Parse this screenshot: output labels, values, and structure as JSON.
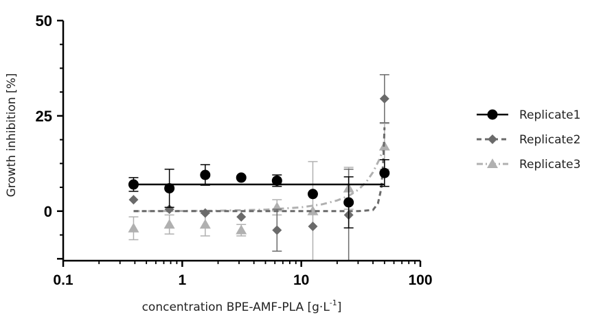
{
  "chart_data": {
    "type": "scatter",
    "xlabel": "concentration BPE-AMF-PLA [g·L",
    "xlabel_superscript": "-1",
    "xlabel_suffix": "]",
    "ylabel": "Growth inhibition [%]",
    "xscale": "log",
    "xlim": [
      0.1,
      100
    ],
    "ylim": [
      -13,
      50
    ],
    "x_ticks": [
      0.1,
      1,
      10,
      100
    ],
    "x_tick_labels": [
      "0.1",
      "1",
      "10",
      "100"
    ],
    "y_ticks": [
      0,
      25,
      50
    ],
    "y_tick_labels": [
      "0",
      "25",
      "50"
    ],
    "grid": false,
    "legend_position": "right",
    "series": [
      {
        "name": "Replicate1",
        "marker": "circle",
        "color": "#000000",
        "line_style": "solid",
        "x": [
          0.39,
          0.78,
          1.56,
          3.13,
          6.25,
          12.5,
          25,
          50
        ],
        "y": [
          7.0,
          6.0,
          9.5,
          8.8,
          8.0,
          4.5,
          2.3,
          10.0
        ],
        "err": [
          1.8,
          5.0,
          2.7,
          0,
          1.5,
          0,
          6.7,
          3.5
        ],
        "fit_x": [
          0.39,
          50
        ],
        "fit_y": [
          7.0,
          7.0
        ]
      },
      {
        "name": "Replicate2",
        "marker": "diamond",
        "color": "#6a6a6a",
        "line_style": "dash",
        "x": [
          0.39,
          0.78,
          1.56,
          3.13,
          6.25,
          12.5,
          25,
          50
        ],
        "y": [
          3.0,
          0.5,
          -0.5,
          -1.5,
          -5.0,
          -4.0,
          -1.0,
          29.5
        ],
        "err": [
          0,
          0,
          0,
          0,
          5.5,
          0,
          12.0,
          6.3
        ],
        "fit_x": [
          0.39,
          2,
          10,
          30,
          40,
          44,
          47,
          49,
          50
        ],
        "fit_y": [
          0,
          0,
          0,
          0,
          0.3,
          2.0,
          6.0,
          14.0,
          22.0
        ]
      },
      {
        "name": "Replicate3",
        "marker": "triangle",
        "color": "#b0b0b0",
        "line_style": "dashdot",
        "x": [
          0.39,
          0.78,
          1.56,
          3.13,
          6.25,
          12.5,
          25,
          50
        ],
        "y": [
          -4.5,
          -3.5,
          -3.5,
          -5.0,
          1.0,
          0.0,
          6.0,
          17.0
        ],
        "err": [
          3.0,
          2.5,
          3.0,
          1.5,
          2.0,
          13.0,
          5.5,
          6.0
        ],
        "fit_x": [
          0.39,
          2,
          5,
          10,
          15,
          20,
          25,
          30,
          35,
          40,
          45,
          50
        ],
        "fit_y": [
          0,
          0.1,
          0.4,
          1.0,
          1.8,
          2.8,
          4.0,
          5.6,
          7.6,
          10.2,
          13.4,
          17.0
        ]
      }
    ]
  }
}
